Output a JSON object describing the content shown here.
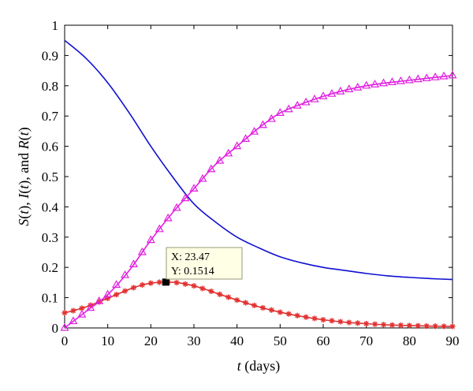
{
  "chart_data": {
    "type": "line",
    "xlabel_var": "t",
    "xlabel_unit": " (days)",
    "ylabel": {
      "s": "S",
      "i": "I",
      "r": "R",
      "t": "t",
      "open": "(",
      "close": ")",
      "sep": ", ",
      "and": ", and "
    },
    "xlim": [
      0,
      90
    ],
    "ylim": [
      0,
      1
    ],
    "xticks": [
      0,
      10,
      20,
      30,
      40,
      50,
      60,
      70,
      80,
      90
    ],
    "yticks": [
      0,
      0.1,
      0.2,
      0.3,
      0.4,
      0.5,
      0.6,
      0.7,
      0.8,
      0.9,
      1
    ],
    "grid": false,
    "series": [
      {
        "color": "#1010d0",
        "marker": "none",
        "x": [
          0,
          5,
          10,
          15,
          20,
          25,
          30,
          35,
          40,
          45,
          50,
          55,
          60,
          65,
          70,
          75,
          80,
          85,
          90
        ],
        "values": [
          0.95,
          0.89,
          0.81,
          0.71,
          0.6,
          0.5,
          0.41,
          0.35,
          0.3,
          0.265,
          0.235,
          0.215,
          0.2,
          0.19,
          0.18,
          0.172,
          0.167,
          0.163,
          0.16
        ]
      },
      {
        "color": "#e23030",
        "marker": "star",
        "x": [
          0,
          2,
          4,
          6,
          8,
          10,
          12,
          14,
          16,
          18,
          20,
          22,
          23.47,
          25,
          27,
          30,
          33,
          36,
          40,
          45,
          50,
          55,
          60,
          65,
          70,
          75,
          80,
          85,
          90
        ],
        "values": [
          0.05,
          0.057,
          0.065,
          0.075,
          0.086,
          0.098,
          0.11,
          0.122,
          0.133,
          0.142,
          0.148,
          0.151,
          0.1514,
          0.151,
          0.148,
          0.139,
          0.126,
          0.111,
          0.092,
          0.07,
          0.052,
          0.038,
          0.027,
          0.019,
          0.014,
          0.01,
          0.008,
          0.006,
          0.005
        ]
      },
      {
        "color": "#e020e0",
        "marker": "triangle",
        "x": [
          0,
          5,
          10,
          15,
          20,
          25,
          30,
          35,
          40,
          45,
          50,
          55,
          60,
          65,
          70,
          75,
          80,
          85,
          90
        ],
        "values": [
          0,
          0.055,
          0.11,
          0.19,
          0.29,
          0.38,
          0.46,
          0.54,
          0.6,
          0.66,
          0.71,
          0.74,
          0.765,
          0.785,
          0.8,
          0.81,
          0.818,
          0.826,
          0.834
        ]
      }
    ],
    "datatip": {
      "x": 23.47,
      "y": 0.1514,
      "line1": "X: 23.47",
      "line2": "Y: 0.1514"
    }
  }
}
